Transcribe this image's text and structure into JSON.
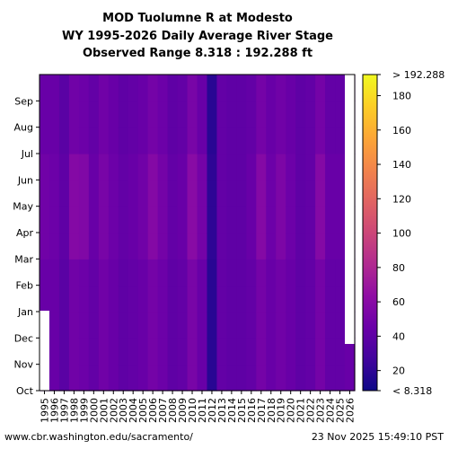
{
  "chart_data": {
    "type": "heatmap",
    "title": [
      "MOD Tuolumne R at Modesto",
      "WY 1995-2026 Daily Average River Stage",
      "Observed Range 8.318 : 192.288 ft"
    ],
    "xlabel": "",
    "ylabel": "",
    "x_categories": [
      "1995",
      "1996",
      "1997",
      "1998",
      "1999",
      "2000",
      "2001",
      "2002",
      "2003",
      "2004",
      "2005",
      "2006",
      "2007",
      "2008",
      "2009",
      "2010",
      "2011",
      "2012",
      "2013",
      "2014",
      "2015",
      "2016",
      "2017",
      "2018",
      "2019",
      "2020",
      "2021",
      "2022",
      "2023",
      "2024",
      "2025",
      "2026"
    ],
    "y_categories": [
      "Oct",
      "Nov",
      "Dec",
      "Jan",
      "Feb",
      "Mar",
      "Apr",
      "May",
      "Jun",
      "Jul",
      "Aug",
      "Sep"
    ],
    "colorbar": {
      "colormap": "plasma",
      "vmin": 8.318,
      "vmax": 192.288,
      "ticks": [
        20,
        40,
        60,
        80,
        100,
        120,
        140,
        160,
        180
      ],
      "min_label": "< 8.318",
      "max_label": "> 192.288"
    },
    "typical_values": [
      44,
      44,
      38,
      48,
      46,
      42,
      48,
      44,
      40,
      42,
      44,
      50,
      46,
      40,
      42,
      52,
      44,
      18,
      42,
      40,
      40,
      42,
      50,
      44,
      48,
      44,
      40,
      42,
      50,
      42,
      42,
      44
    ],
    "spring_values": [
      48,
      46,
      40,
      58,
      56,
      44,
      52,
      46,
      42,
      44,
      48,
      58,
      50,
      42,
      44,
      60,
      50,
      20,
      42,
      40,
      40,
      44,
      58,
      46,
      54,
      46,
      40,
      42,
      58,
      44,
      44,
      44
    ]
  },
  "footer": {
    "left": "www.cbr.washington.edu/sacramento/",
    "right": "23 Nov 2025 15:49:10 PST"
  }
}
